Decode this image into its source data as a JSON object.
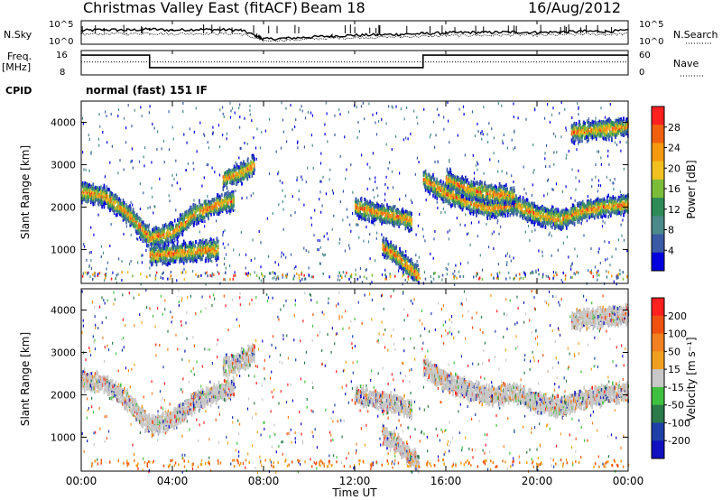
{
  "header": {
    "title": "Christmas Valley East (fitACF)",
    "beam": "Beam 18",
    "date": "16/Aug/2012"
  },
  "left_labels": {
    "nsky": "N.Sky",
    "freq": "Freq.",
    "freq_unit": "[MHz]",
    "cpid": "CPID"
  },
  "right_labels": {
    "nsearch": "N.Search",
    "nave": "Nave"
  },
  "cpid_text": "normal (fast) 151 IF",
  "x_axis": {
    "ticks": [
      "00:00",
      "04:00",
      "08:00",
      "12:00",
      "16:00",
      "20:00",
      "00:00"
    ],
    "label": "Time UT"
  },
  "colors": {
    "power_scale": [
      "#0000dd",
      "#3a5aa5",
      "#4a8a8a",
      "#2e8b57",
      "#7bbd3a",
      "#f0c020",
      "#f59a10",
      "#f06010",
      "#ff2020"
    ],
    "velocity_scale": [
      "#1010c0",
      "#1f3fa8",
      "#2a7a4a",
      "#40c040",
      "#c8c8c8",
      "#f0a020",
      "#f08020",
      "#f05010",
      "#ff2020"
    ]
  },
  "chart_data": [
    {
      "type": "line",
      "name": "noise",
      "x": [
        0,
        1,
        2,
        3,
        4,
        5,
        6,
        7,
        7.7,
        8,
        9,
        10,
        11,
        12,
        13,
        14,
        15,
        16,
        17,
        18,
        19,
        20,
        21,
        22,
        23,
        24
      ],
      "series": [
        {
          "name": "N.Sky",
          "values": [
            0.58,
            0.62,
            0.6,
            0.64,
            0.6,
            0.63,
            0.62,
            0.6,
            0.35,
            0.22,
            0.25,
            0.3,
            0.35,
            0.38,
            0.4,
            0.42,
            0.45,
            0.48,
            0.5,
            0.5,
            0.52,
            0.5,
            0.52,
            0.55,
            0.55,
            0.58
          ]
        },
        {
          "name": "N.Search",
          "values": [
            0.42,
            0.45,
            0.44,
            0.47,
            0.44,
            0.46,
            0.45,
            0.44,
            0.25,
            0.15,
            0.18,
            0.22,
            0.26,
            0.28,
            0.3,
            0.32,
            0.34,
            0.36,
            0.38,
            0.38,
            0.4,
            0.38,
            0.4,
            0.42,
            0.42,
            0.44
          ]
        }
      ],
      "ylabel_left": [
        "10^5",
        "10^0"
      ],
      "ylabel_right": [
        "10^5",
        "10^0"
      ]
    },
    {
      "type": "line",
      "name": "frequency",
      "x": [
        0,
        3,
        3,
        15,
        15,
        24
      ],
      "series": [
        {
          "name": "Freq.",
          "values": [
            14.5,
            14.5,
            10.4,
            10.4,
            14.5,
            14.5
          ]
        },
        {
          "name": "Nave",
          "values": [
            32,
            32,
            32,
            32,
            32,
            32
          ]
        }
      ],
      "ylim": [
        8,
        16
      ],
      "yticks_left": [
        "16",
        "8"
      ],
      "yticks_right": [
        "60",
        "0"
      ]
    },
    {
      "type": "heatmap",
      "name": "power",
      "xlabel": "Time UT",
      "ylabel": "Slant Range [km]",
      "xlim": [
        0,
        24
      ],
      "ylim": [
        200,
        4500
      ],
      "yticks": [
        1000,
        2000,
        3000,
        4000
      ],
      "colorbar": {
        "label": "Power [dB]",
        "ticks": [
          "4",
          "8",
          "12",
          "16",
          "20",
          "24",
          "28"
        ],
        "range": [
          0,
          32
        ]
      },
      "bands": [
        {
          "x": [
            0,
            1,
            2,
            3,
            4,
            5,
            6,
            6.7
          ],
          "y": [
            2400,
            2300,
            1900,
            1300,
            1450,
            1900,
            2100,
            2200
          ]
        },
        {
          "x": [
            6.2,
            6.8,
            7.2,
            7.6
          ],
          "y": [
            2700,
            2800,
            2900,
            3050
          ]
        },
        {
          "x": [
            3,
            4,
            5,
            6
          ],
          "y": [
            900,
            950,
            1000,
            1050
          ]
        },
        {
          "x": [
            12,
            13,
            14,
            14.5
          ],
          "y": [
            2050,
            1900,
            1800,
            1700
          ]
        },
        {
          "x": [
            13.2,
            13.8,
            14.3,
            14.8
          ],
          "y": [
            1100,
            900,
            650,
            400
          ]
        },
        {
          "x": [
            15,
            16,
            17,
            18,
            19,
            20,
            21,
            22,
            23,
            24
          ],
          "y": [
            2700,
            2350,
            2150,
            2000,
            2100,
            1850,
            1750,
            1950,
            2050,
            2100
          ]
        },
        {
          "x": [
            16,
            17,
            18,
            19
          ],
          "y": [
            2700,
            2450,
            2350,
            2300
          ]
        },
        {
          "x": [
            21.5,
            22.5,
            23.5,
            24
          ],
          "y": [
            3800,
            3850,
            3900,
            3950
          ]
        }
      ]
    },
    {
      "type": "heatmap",
      "name": "velocity",
      "xlabel": "Time UT",
      "ylabel": "Slant Range [km]",
      "xlim": [
        0,
        24
      ],
      "ylim": [
        200,
        4500
      ],
      "yticks": [
        1000,
        2000,
        3000,
        4000
      ],
      "colorbar": {
        "label": "Velocity [m s⁻¹]",
        "ticks": [
          "200",
          "100",
          "50",
          "15",
          "-15",
          "-50",
          "-100",
          "-200"
        ],
        "range": [
          -250,
          250
        ]
      },
      "bands": [
        {
          "x": [
            0,
            1,
            2,
            3,
            4,
            5,
            6,
            6.7
          ],
          "y": [
            2400,
            2300,
            1900,
            1300,
            1450,
            1900,
            2100,
            2200
          ]
        },
        {
          "x": [
            6.2,
            6.8,
            7.2,
            7.6
          ],
          "y": [
            2700,
            2800,
            2900,
            3050
          ]
        },
        {
          "x": [
            12,
            13,
            14,
            14.5
          ],
          "y": [
            2050,
            1900,
            1800,
            1700
          ]
        },
        {
          "x": [
            13.2,
            13.8,
            14.3,
            14.8
          ],
          "y": [
            1100,
            900,
            650,
            400
          ]
        },
        {
          "x": [
            15,
            16,
            17,
            18,
            19,
            20,
            21,
            22,
            23,
            24
          ],
          "y": [
            2700,
            2350,
            2150,
            2000,
            2100,
            1850,
            1750,
            1950,
            2050,
            2100
          ]
        },
        {
          "x": [
            21.5,
            22.5,
            23.5,
            24
          ],
          "y": [
            3800,
            3850,
            3900,
            3950
          ]
        }
      ]
    }
  ]
}
